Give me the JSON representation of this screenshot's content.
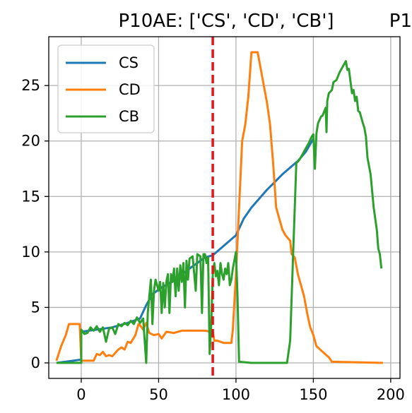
{
  "chart_data": {
    "type": "line",
    "title": "P10AE: ['CS', 'CD', 'CB']",
    "title_overflow_fragment": "P1",
    "xlabel": "",
    "ylabel": "",
    "xlim": [
      -21,
      206
    ],
    "ylim": [
      -1.4,
      29.4
    ],
    "x_ticks": [
      0,
      50,
      100,
      150,
      200
    ],
    "x_tick_labels": [
      "0",
      "50",
      "100",
      "150",
      "200"
    ],
    "y_ticks": [
      0,
      5,
      10,
      15,
      20,
      25
    ],
    "y_tick_labels": [
      "0",
      "5",
      "10",
      "15",
      "20",
      "25"
    ],
    "grid": true,
    "legend": {
      "position": "top-left",
      "entries": [
        "CS",
        "CD",
        "CB"
      ]
    },
    "vline": {
      "x": 85,
      "color": "#ee1111",
      "style": "dashed"
    },
    "series": [
      {
        "name": "CS",
        "color": "#1f77b4",
        "points": [
          [
            -16,
            0
          ],
          [
            -5,
            0.2
          ],
          [
            0,
            0.3
          ],
          [
            0,
            2.8
          ],
          [
            5,
            2.9
          ],
          [
            10,
            3.0
          ],
          [
            20,
            3.2
          ],
          [
            30,
            3.6
          ],
          [
            38,
            4.0
          ],
          [
            42,
            5.2
          ],
          [
            46,
            6.2
          ],
          [
            52,
            6.8
          ],
          [
            60,
            7.4
          ],
          [
            70,
            8.5
          ],
          [
            80,
            9.5
          ],
          [
            85,
            9.7
          ],
          [
            100,
            11.5
          ],
          [
            105,
            13.0
          ],
          [
            110,
            14.0
          ],
          [
            115,
            14.8
          ],
          [
            120,
            15.6
          ],
          [
            125,
            16.3
          ],
          [
            130,
            17.0
          ],
          [
            135,
            17.6
          ],
          [
            140,
            18.2
          ],
          [
            145,
            19.0
          ],
          [
            150,
            20.2
          ]
        ]
      },
      {
        "name": "CD",
        "color": "#ff7f0e",
        "points": [
          [
            -16,
            0.2
          ],
          [
            -13,
            1.5
          ],
          [
            -10,
            2.5
          ],
          [
            -8,
            3.5
          ],
          [
            -5,
            3.5
          ],
          [
            -1,
            3.5
          ],
          [
            0,
            0.2
          ],
          [
            8,
            0.2
          ],
          [
            10,
            0.8
          ],
          [
            12,
            0.7
          ],
          [
            14,
            1.0
          ],
          [
            16,
            0.6
          ],
          [
            18,
            0.7
          ],
          [
            20,
            0.6
          ],
          [
            24,
            1.2
          ],
          [
            26,
            1.4
          ],
          [
            28,
            1.2
          ],
          [
            30,
            1.9
          ],
          [
            32,
            1.8
          ],
          [
            35,
            2.5
          ],
          [
            37,
            3.5
          ],
          [
            38,
            3.4
          ],
          [
            40,
            3.0
          ],
          [
            42,
            3.6
          ],
          [
            44,
            2.7
          ],
          [
            47,
            2.5
          ],
          [
            50,
            2.6
          ],
          [
            52,
            2.2
          ],
          [
            55,
            2.8
          ],
          [
            60,
            2.7
          ],
          [
            65,
            2.9
          ],
          [
            70,
            2.9
          ],
          [
            75,
            2.9
          ],
          [
            80,
            2.9
          ],
          [
            84,
            2.8
          ],
          [
            85,
            2.8
          ],
          [
            86,
            2.0
          ],
          [
            88,
            2.0
          ],
          [
            92,
            1.8
          ],
          [
            97,
            1.8
          ],
          [
            98,
            3.0
          ],
          [
            100,
            8.0
          ],
          [
            102,
            14.0
          ],
          [
            104,
            20.0
          ],
          [
            106,
            21.5
          ],
          [
            108,
            24.0
          ],
          [
            110,
            28.0
          ],
          [
            112,
            28.0
          ],
          [
            114,
            28.0
          ],
          [
            116,
            26.5
          ],
          [
            118,
            25.0
          ],
          [
            120,
            23.5
          ],
          [
            122,
            21.5
          ],
          [
            124,
            18.0
          ],
          [
            126,
            14.0
          ],
          [
            128,
            13.0
          ],
          [
            130,
            12.0
          ],
          [
            132,
            11.5
          ],
          [
            135,
            11.0
          ],
          [
            136,
            9.8
          ],
          [
            138,
            9.5
          ],
          [
            140,
            8.0
          ],
          [
            142,
            7.0
          ],
          [
            144,
            6.0
          ],
          [
            146,
            4.5
          ],
          [
            148,
            3.2
          ],
          [
            150,
            2.5
          ],
          [
            152,
            1.5
          ],
          [
            156,
            1.0
          ],
          [
            160,
            0.5
          ],
          [
            162,
            0.1
          ],
          [
            195,
            0.0
          ]
        ]
      },
      {
        "name": "CB",
        "color": "#2ca02c",
        "points": [
          [
            -16,
            0.0
          ],
          [
            0,
            0.0
          ],
          [
            0,
            3.0
          ],
          [
            2,
            2.6
          ],
          [
            4,
            2.7
          ],
          [
            6,
            3.2
          ],
          [
            8,
            2.9
          ],
          [
            10,
            3.3
          ],
          [
            12,
            2.8
          ],
          [
            14,
            3.2
          ],
          [
            16,
            1.9
          ],
          [
            18,
            3.1
          ],
          [
            20,
            3.2
          ],
          [
            22,
            2.6
          ],
          [
            24,
            3.5
          ],
          [
            26,
            3.3
          ],
          [
            28,
            3.6
          ],
          [
            30,
            3.4
          ],
          [
            32,
            3.8
          ],
          [
            34,
            3.5
          ],
          [
            36,
            4.1
          ],
          [
            38,
            3.6
          ],
          [
            40,
            4.0
          ],
          [
            42,
            0.0
          ],
          [
            43,
            4.5
          ],
          [
            44,
            6.0
          ],
          [
            45,
            7.5
          ],
          [
            46,
            3.5
          ],
          [
            47,
            6.5
          ],
          [
            48,
            7.5
          ],
          [
            50,
            6.5
          ],
          [
            51,
            7.3
          ],
          [
            52,
            4.5
          ],
          [
            53,
            7.2
          ],
          [
            54,
            5.0
          ],
          [
            55,
            7.3
          ],
          [
            56,
            8.0
          ],
          [
            57,
            4.5
          ],
          [
            58,
            8.0
          ],
          [
            59,
            7.3
          ],
          [
            60,
            8.5
          ],
          [
            61,
            6.0
          ],
          [
            62,
            8.5
          ],
          [
            63,
            6.5
          ],
          [
            64,
            8.8
          ],
          [
            65,
            7.3
          ],
          [
            66,
            9.0
          ],
          [
            67,
            5.0
          ],
          [
            68,
            9.2
          ],
          [
            69,
            7.5
          ],
          [
            70,
            9.4
          ],
          [
            72,
            9.6
          ],
          [
            74,
            6.5
          ],
          [
            75,
            9.8
          ],
          [
            77,
            9.6
          ],
          [
            78,
            4.5
          ],
          [
            79,
            9.8
          ],
          [
            80,
            9.8
          ],
          [
            81,
            9.0
          ],
          [
            82,
            9.5
          ],
          [
            83,
            0.8
          ],
          [
            84,
            3.5
          ],
          [
            85,
            8.0
          ],
          [
            86,
            9.0
          ],
          [
            87,
            7.8
          ],
          [
            88,
            8.3
          ],
          [
            89,
            7.0
          ],
          [
            90,
            9.0
          ],
          [
            91,
            8.0
          ],
          [
            92,
            7.5
          ],
          [
            93,
            8.5
          ],
          [
            94,
            8.0
          ],
          [
            95,
            9.0
          ],
          [
            96,
            7.0
          ],
          [
            97,
            7.5
          ],
          [
            98,
            8.5
          ],
          [
            100,
            10.0
          ],
          [
            101,
            6.0
          ],
          [
            102,
            0.1
          ],
          [
            110,
            0.0
          ],
          [
            120,
            0.0
          ],
          [
            133,
            0.0
          ],
          [
            135,
            2.0
          ],
          [
            137,
            10.0
          ],
          [
            139,
            18.0
          ],
          [
            141,
            18.3
          ],
          [
            143,
            18.8
          ],
          [
            145,
            19.3
          ],
          [
            147,
            19.8
          ],
          [
            149,
            20.4
          ],
          [
            150,
            20.6
          ],
          [
            151,
            17.5
          ],
          [
            152,
            20.7
          ],
          [
            153,
            21.6
          ],
          [
            155,
            22.2
          ],
          [
            156,
            22.3
          ],
          [
            158,
            23.0
          ],
          [
            158.5,
            20.8
          ],
          [
            159,
            23.6
          ],
          [
            160,
            24.3
          ],
          [
            162,
            24.6
          ],
          [
            163,
            25.3
          ],
          [
            165,
            25.5
          ],
          [
            167,
            26.2
          ],
          [
            169,
            26.7
          ],
          [
            171,
            27.2
          ],
          [
            172,
            26.4
          ],
          [
            173,
            26.5
          ],
          [
            174,
            25.4
          ],
          [
            175,
            24.3
          ],
          [
            176,
            24.6
          ],
          [
            177,
            23.6
          ],
          [
            178,
            24.0
          ],
          [
            179,
            22.7
          ],
          [
            180,
            22.6
          ],
          [
            181,
            22.1
          ],
          [
            182,
            21.6
          ],
          [
            183,
            21.2
          ],
          [
            184,
            20.4
          ],
          [
            185,
            18.5
          ],
          [
            187,
            17.0
          ],
          [
            189,
            14.0
          ],
          [
            191,
            12.0
          ],
          [
            192,
            10.3
          ],
          [
            193,
            9.8
          ],
          [
            194,
            8.5
          ]
        ]
      }
    ]
  }
}
